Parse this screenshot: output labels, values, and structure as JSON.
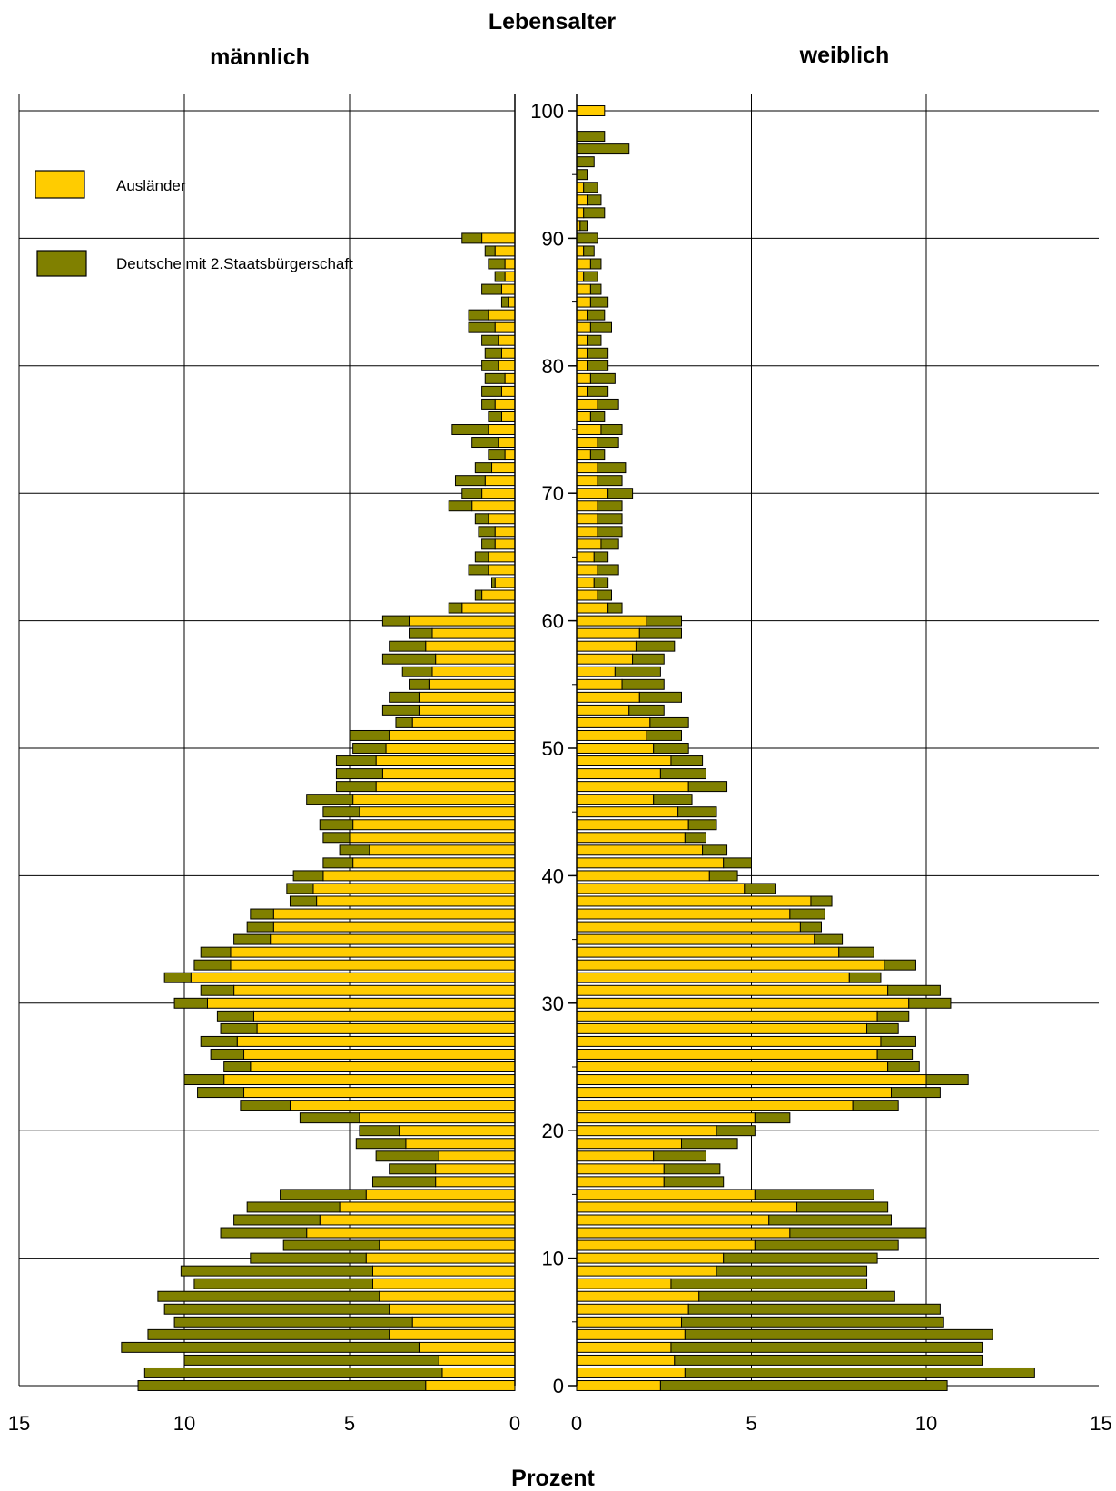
{
  "chart_data": {
    "type": "bar",
    "orientation": "horizontal",
    "layout": "population-pyramid",
    "stacked": true,
    "title": "Lebensalter",
    "xlabel": "Prozent",
    "panels": {
      "left": {
        "title": "männlich",
        "xlim": [
          15,
          0
        ],
        "xticks": [
          "15",
          "10",
          "5",
          "0"
        ]
      },
      "right": {
        "title": "weiblich",
        "xlim": [
          0,
          15
        ],
        "xticks": [
          "0",
          "5",
          "10",
          "15"
        ]
      }
    },
    "age_axis": {
      "range": [
        0,
        100
      ],
      "ticks": [
        "0",
        "10",
        "20",
        "30",
        "40",
        "50",
        "60",
        "70",
        "80",
        "90",
        "100"
      ]
    },
    "grid": true,
    "legend": {
      "placement": "top-left",
      "entries": [
        {
          "label": "Ausländer",
          "color": "#FFCC00"
        },
        {
          "label": "Deutsche mit 2.Staatsbürgerschaft",
          "color": "#808000"
        }
      ]
    },
    "series": [
      {
        "name": "Ausländer",
        "color": "#FFCC00",
        "male": [
          2.7,
          2.2,
          2.3,
          2.9,
          3.8,
          3.1,
          3.8,
          4.1,
          4.3,
          4.3,
          4.5,
          4.1,
          6.3,
          5.9,
          5.3,
          4.5,
          2.4,
          2.4,
          2.3,
          3.3,
          3.5,
          4.7,
          6.8,
          8.2,
          8.8,
          8.0,
          8.2,
          8.4,
          7.8,
          7.9,
          9.3,
          8.5,
          9.8,
          8.6,
          8.6,
          7.4,
          7.3,
          7.3,
          6.0,
          6.1,
          5.8,
          4.9,
          4.4,
          5.0,
          4.9,
          4.7,
          4.9,
          4.2,
          4.0,
          4.2,
          3.9,
          3.8,
          3.1,
          2.9,
          2.9,
          2.6,
          2.5,
          2.4,
          2.7,
          2.5,
          3.2,
          1.6,
          1.0,
          0.6,
          0.8,
          0.8,
          0.6,
          0.6,
          0.8,
          1.3,
          1.0,
          0.9,
          0.7,
          0.3,
          0.5,
          0.8,
          0.4,
          0.6,
          0.4,
          0.3,
          0.5,
          0.4,
          0.5,
          0.6,
          0.8,
          0.2,
          0.4,
          0.3,
          0.3,
          0.6,
          1.0,
          0,
          0,
          0,
          0,
          0,
          0,
          0,
          0,
          0,
          0
        ],
        "female": [
          2.4,
          3.1,
          2.8,
          2.7,
          3.1,
          3.0,
          3.2,
          3.5,
          2.7,
          4.0,
          4.2,
          5.1,
          6.1,
          5.5,
          6.3,
          5.1,
          2.5,
          2.5,
          2.2,
          3.0,
          4.0,
          5.1,
          7.9,
          9.0,
          10.0,
          8.9,
          8.6,
          8.7,
          8.3,
          8.6,
          9.5,
          8.9,
          7.8,
          8.8,
          7.5,
          6.8,
          6.4,
          6.1,
          6.7,
          4.8,
          3.8,
          4.2,
          3.6,
          3.1,
          3.2,
          2.9,
          2.2,
          3.2,
          2.4,
          2.7,
          2.2,
          2.0,
          2.1,
          1.5,
          1.8,
          1.3,
          1.1,
          1.6,
          1.7,
          1.8,
          2.0,
          0.9,
          0.6,
          0.5,
          0.6,
          0.5,
          0.7,
          0.6,
          0.6,
          0.6,
          0.9,
          0.6,
          0.6,
          0.4,
          0.6,
          0.7,
          0.4,
          0.6,
          0.3,
          0.4,
          0.3,
          0.3,
          0.3,
          0.4,
          0.3,
          0.4,
          0.4,
          0.2,
          0.4,
          0.2,
          0.0,
          0.1,
          0.2,
          0.3,
          0.2,
          0.0,
          0.0,
          0.0,
          0.0,
          0.0,
          0.8
        ],
        "pair": "Deutsche mit 2.Staatsbürgerschaft"
      },
      {
        "name": "Deutsche mit 2.Staatsbürgerschaft",
        "color": "#808000",
        "male": [
          8.7,
          9.0,
          7.7,
          9.0,
          7.3,
          7.2,
          6.8,
          6.7,
          5.4,
          5.8,
          3.5,
          2.9,
          2.6,
          2.6,
          2.8,
          2.6,
          1.9,
          1.4,
          1.9,
          1.5,
          1.2,
          1.8,
          1.5,
          1.4,
          1.2,
          0.8,
          1.0,
          1.1,
          1.1,
          1.1,
          1.0,
          1.0,
          0.8,
          1.1,
          0.9,
          1.1,
          0.8,
          0.7,
          0.8,
          0.8,
          0.9,
          0.9,
          0.9,
          0.8,
          1.0,
          1.1,
          1.4,
          1.2,
          1.4,
          1.2,
          1.0,
          1.2,
          0.5,
          1.1,
          0.9,
          0.6,
          0.9,
          1.6,
          1.1,
          0.7,
          0.8,
          0.4,
          0.2,
          0.1,
          0.6,
          0.4,
          0.4,
          0.5,
          0.4,
          0.7,
          0.6,
          0.9,
          0.5,
          0.5,
          0.8,
          1.1,
          0.4,
          0.4,
          0.6,
          0.6,
          0.5,
          0.5,
          0.5,
          0.8,
          0.6,
          0.2,
          0.6,
          0.3,
          0.5,
          0.3,
          0.6,
          0,
          0,
          0,
          0,
          0,
          0,
          0,
          0,
          0,
          0
        ],
        "female": [
          8.2,
          10.0,
          8.8,
          8.9,
          8.8,
          7.5,
          7.2,
          5.6,
          5.6,
          4.3,
          4.4,
          4.1,
          3.9,
          3.5,
          2.6,
          3.4,
          1.7,
          1.6,
          1.5,
          1.6,
          1.1,
          1.0,
          1.3,
          1.4,
          1.2,
          0.9,
          1.0,
          1.0,
          0.9,
          0.9,
          1.2,
          1.5,
          0.9,
          0.9,
          1.0,
          0.8,
          0.6,
          1.0,
          0.6,
          0.9,
          0.8,
          0.8,
          0.7,
          0.6,
          0.8,
          1.1,
          1.1,
          1.1,
          1.3,
          0.9,
          1.0,
          1.0,
          1.1,
          1.0,
          1.2,
          1.2,
          1.3,
          0.9,
          1.1,
          1.2,
          1.0,
          0.4,
          0.4,
          0.4,
          0.6,
          0.4,
          0.5,
          0.7,
          0.7,
          0.7,
          0.7,
          0.7,
          0.8,
          0.4,
          0.6,
          0.6,
          0.4,
          0.6,
          0.6,
          0.7,
          0.6,
          0.6,
          0.4,
          0.6,
          0.5,
          0.5,
          0.3,
          0.4,
          0.3,
          0.3,
          0.6,
          0.2,
          0.6,
          0.4,
          0.4,
          0.3,
          0.5,
          1.5,
          0.8,
          0.0,
          0.0
        ]
      }
    ]
  }
}
